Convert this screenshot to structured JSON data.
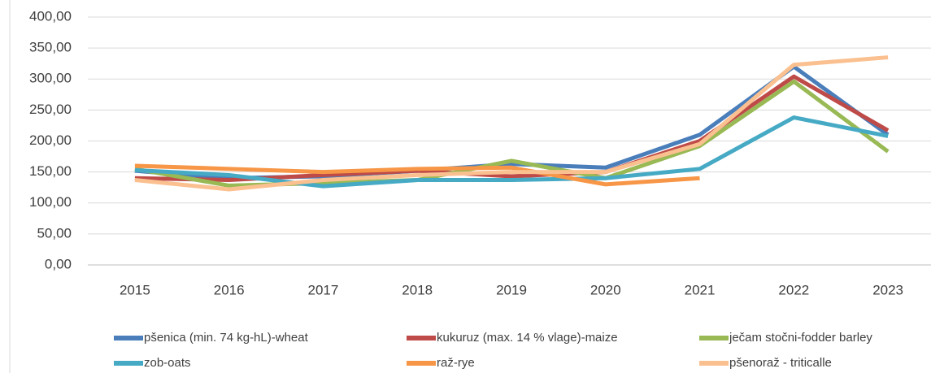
{
  "chart_data": {
    "type": "line",
    "categories": [
      "2015",
      "2016",
      "2017",
      "2018",
      "2019",
      "2020",
      "2021",
      "2022",
      "2023"
    ],
    "series": [
      {
        "name": "pšenica (min. 74 kg-hL)-wheat",
        "color": "#4a7ebb",
        "values": [
          152,
          140,
          143,
          152,
          163,
          157,
          210,
          320,
          210
        ]
      },
      {
        "name": "kukuruz (max. 14 % vlage)-maize",
        "color": "#be4b48",
        "values": [
          140,
          137,
          145,
          152,
          143,
          150,
          200,
          304,
          217
        ]
      },
      {
        "name": "ječam stočni-fodder barley",
        "color": "#98b954",
        "values": [
          155,
          128,
          132,
          137,
          168,
          140,
          192,
          296,
          183
        ]
      },
      {
        "name": "zob-oats",
        "color": "#46aac5",
        "values": [
          153,
          145,
          127,
          137,
          137,
          140,
          155,
          238,
          208
        ]
      },
      {
        "name": "raž-rye",
        "color": "#f79646",
        "values": [
          160,
          155,
          150,
          155,
          157,
          130,
          140,
          null,
          null
        ]
      },
      {
        "name": "pšenoraž - triticalle",
        "color": "#fac090",
        "values": [
          137,
          122,
          137,
          145,
          150,
          150,
          195,
          323,
          335
        ]
      }
    ],
    "ylim": [
      0,
      400
    ],
    "yticks": [
      {
        "value": 0,
        "label": "0,00"
      },
      {
        "value": 50,
        "label": "50,00"
      },
      {
        "value": 100,
        "label": "100,00"
      },
      {
        "value": 150,
        "label": "150,00"
      },
      {
        "value": 200,
        "label": "200,00"
      },
      {
        "value": 250,
        "label": "250,00"
      },
      {
        "value": 300,
        "label": "300,00"
      },
      {
        "value": 350,
        "label": "350,00"
      },
      {
        "value": 400,
        "label": "400,00"
      }
    ],
    "grid": true
  }
}
